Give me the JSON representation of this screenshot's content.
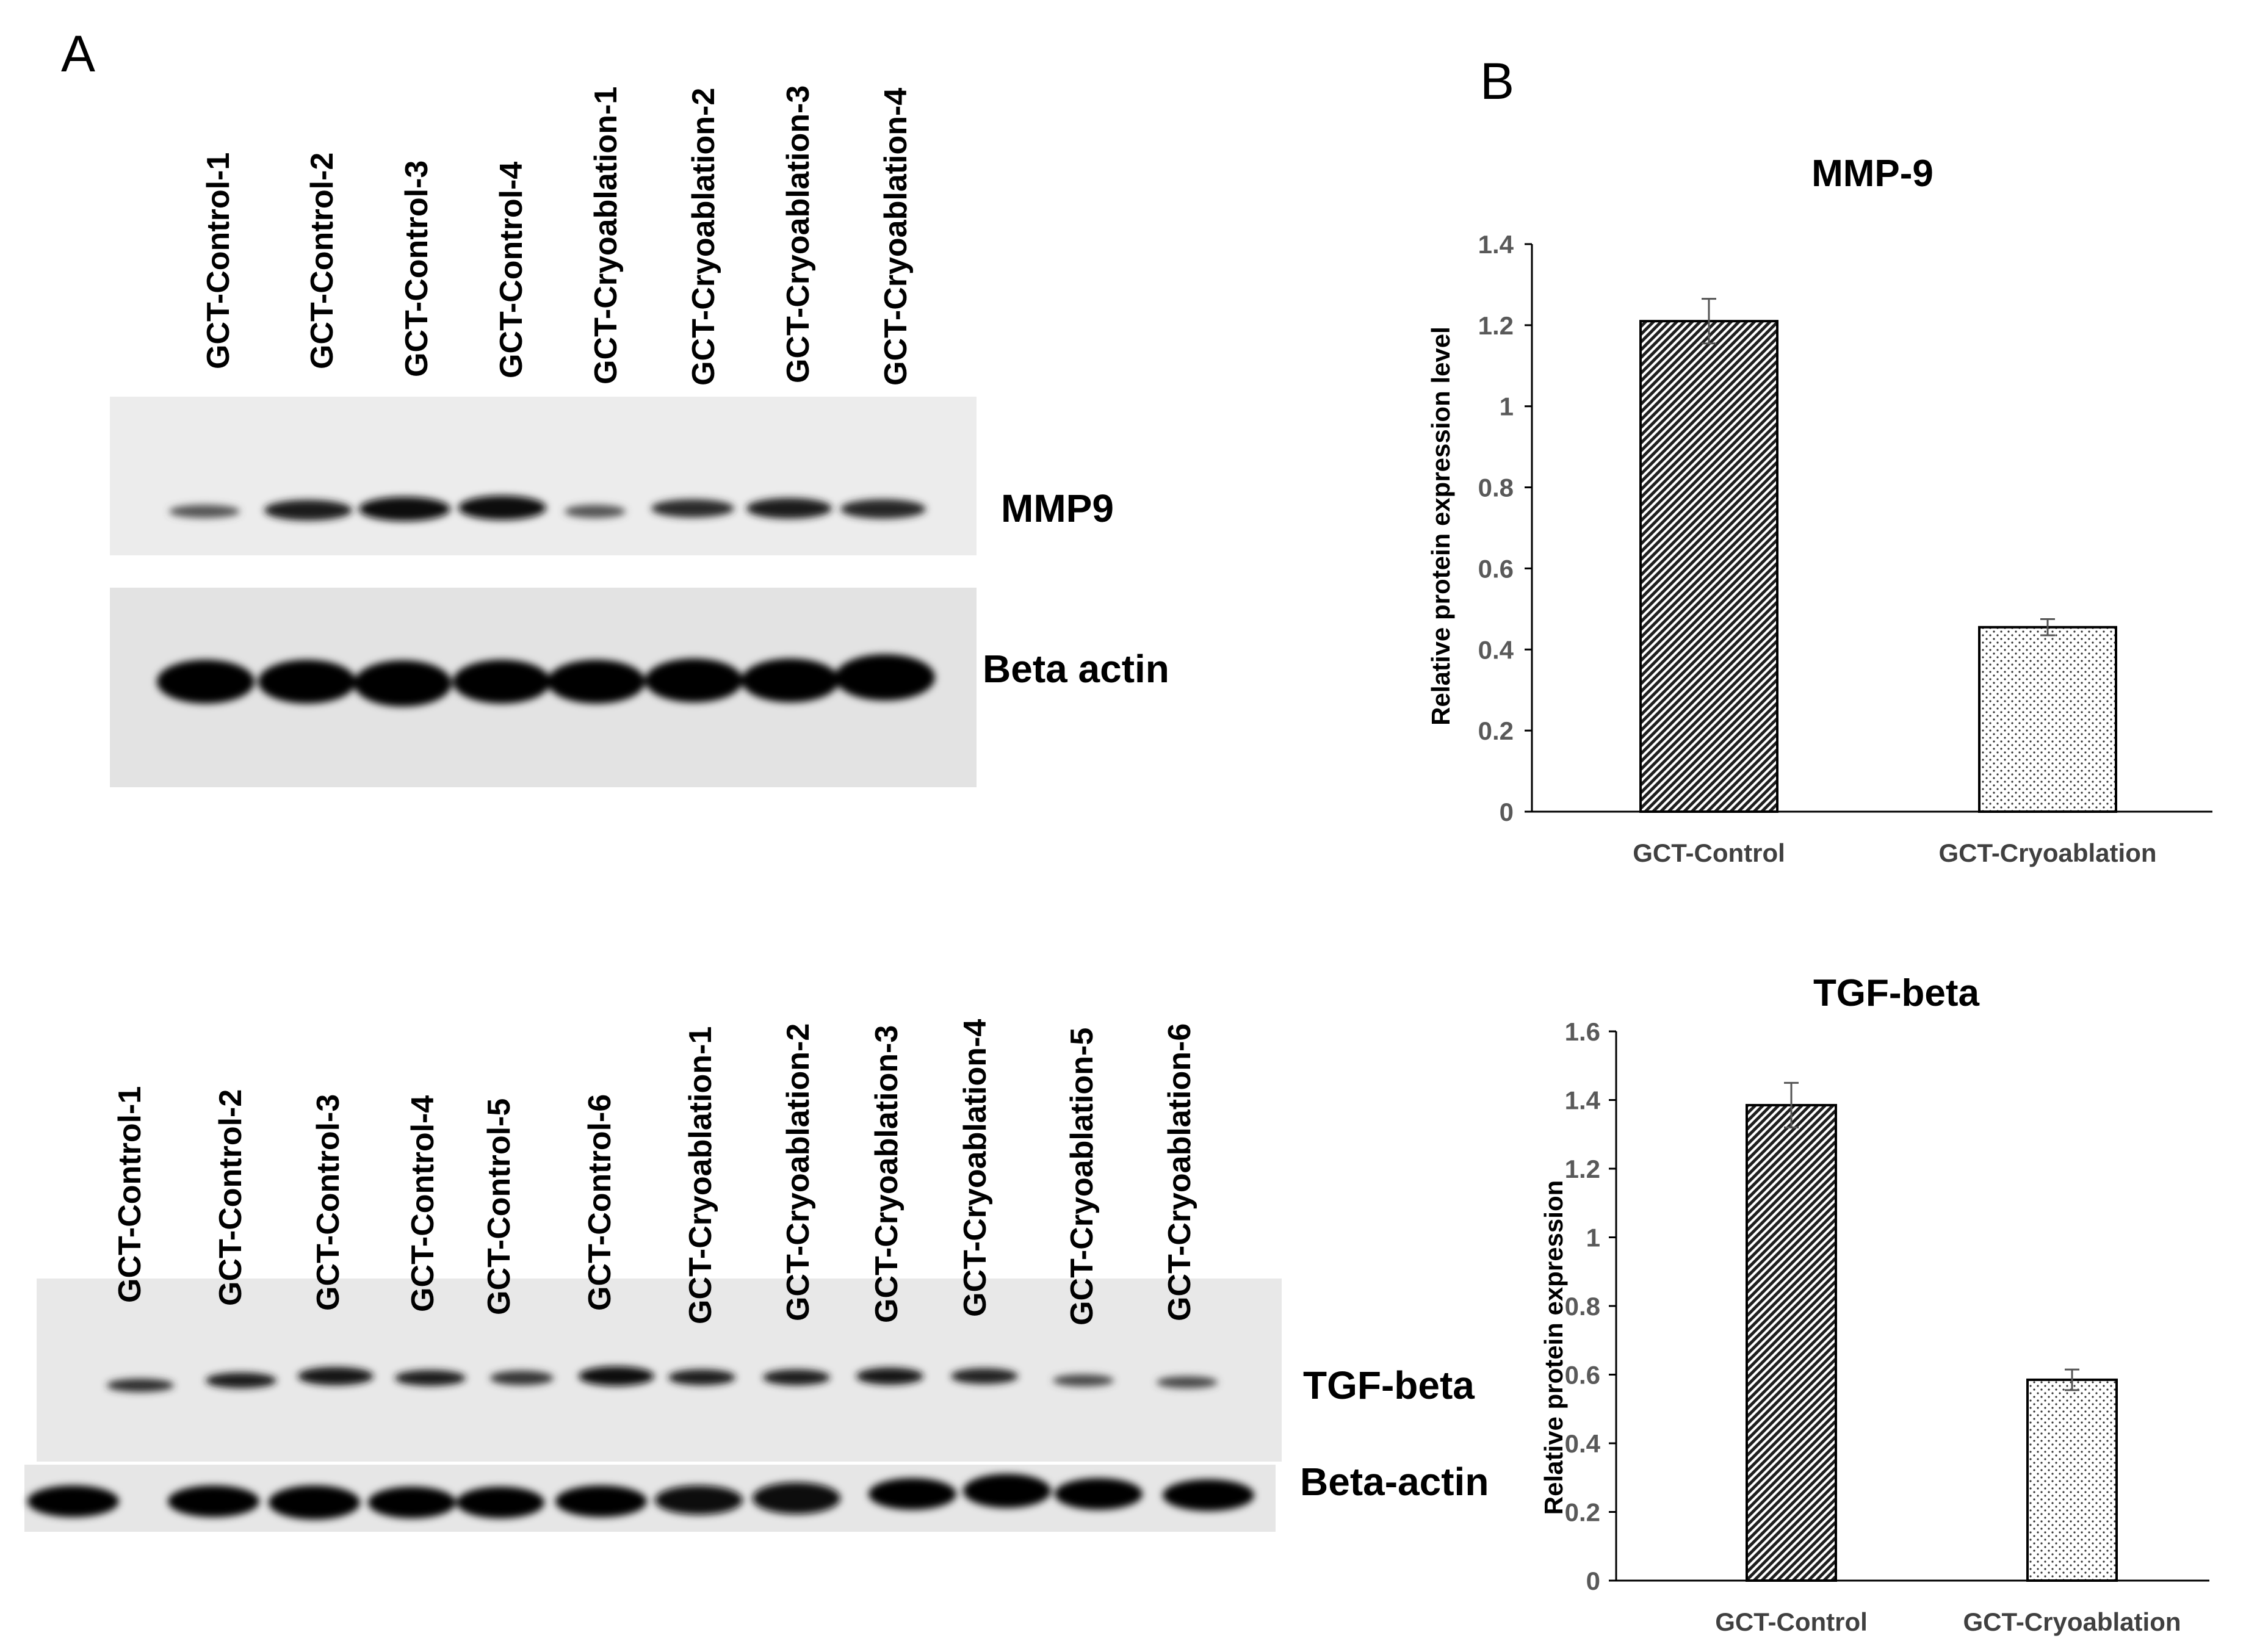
{
  "panels": {
    "a": "A",
    "b": "B"
  },
  "blot_top": {
    "lanes": [
      "GCT-Control-1",
      "GCT-Control-2",
      "GCT-Control-3",
      "GCT-Control-4",
      "GCT-Cryoablation-1",
      "GCT-Cryoablation-2",
      "GCT-Cryoablation-3",
      "GCT-Cryoablation-4"
    ],
    "bands": {
      "target": "MMP9",
      "loading": "Beta actin"
    }
  },
  "blot_bottom": {
    "lanes": [
      "GCT-Control-1",
      "GCT-Control-2",
      "GCT-Control-3",
      "GCT-Control-4",
      "GCT-Control-5",
      "GCT-Control-6",
      "GCT-Cryoablation-1",
      "GCT-Cryoablation-2",
      "GCT-Cryoablation-3",
      "GCT-Cryoablation-4",
      "GCT-Cryoablation-5",
      "GCT-Cryoablation-6"
    ],
    "bands": {
      "target": "TGF-beta",
      "loading": "Beta-actin"
    }
  },
  "chart_data": [
    {
      "type": "bar",
      "title": "MMP-9",
      "categories": [
        "GCT-Control",
        "GCT-Cryoablation"
      ],
      "values": [
        1.21,
        0.455
      ],
      "errors": [
        0.055,
        0.02
      ],
      "ylabel": "Relative protein expression level",
      "xlabel": "",
      "ylim": [
        0,
        1.4
      ],
      "yticks": [
        "0",
        "0.2",
        "0.4",
        "0.6",
        "0.8",
        "1",
        "1.2",
        "1.4"
      ],
      "patterns": [
        "dense-diagonal-hatch",
        "sparse-dots"
      ]
    },
    {
      "type": "bar",
      "title": "TGF-beta",
      "categories": [
        "GCT-Control",
        "GCT-Cryoablation"
      ],
      "values": [
        1.385,
        0.585
      ],
      "errors": [
        0.065,
        0.03
      ],
      "ylabel": "Relative protein expression",
      "xlabel": "",
      "ylim": [
        0,
        1.6
      ],
      "yticks": [
        "0",
        "0.2",
        "0.4",
        "0.6",
        "0.8",
        "1",
        "1.2",
        "1.4",
        "1.6"
      ],
      "patterns": [
        "dense-diagonal-hatch",
        "sparse-dots"
      ]
    }
  ]
}
